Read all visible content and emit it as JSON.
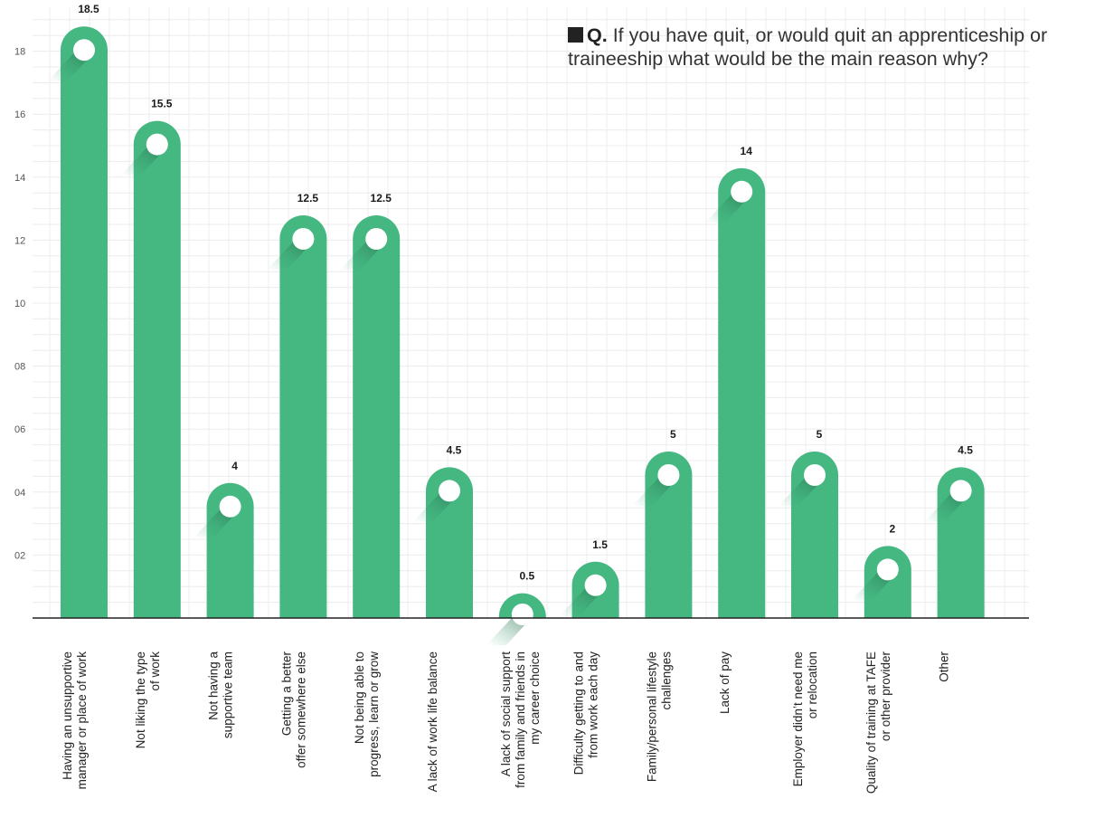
{
  "question": {
    "marker": "Q.",
    "text": "If you have quit, or would quit an apprenticeship or traineeship what would be the main reason why?"
  },
  "chart_data": {
    "type": "bar",
    "title": "",
    "xlabel": "",
    "ylabel": "",
    "ylim": [
      0,
      19
    ],
    "y_ticks": [
      2,
      4,
      6,
      8,
      10,
      12,
      14,
      16,
      18
    ],
    "y_tick_labels": [
      "02",
      "04",
      "06",
      "08",
      "10",
      "12",
      "14",
      "16",
      "18"
    ],
    "grid": true,
    "bar_color": "#45B882",
    "categories": [
      [
        "Having an unsupportive",
        "manager or place of work"
      ],
      [
        "Not liking the type",
        "of work"
      ],
      [
        "Not having a",
        "supportive team"
      ],
      [
        "Getting a better",
        "offer somewhere else"
      ],
      [
        "Not being able to",
        "progress, learn or grow"
      ],
      [
        "A lack of work life balance"
      ],
      [
        "A lack of social support",
        "from family and friends in",
        "my career choice"
      ],
      [
        "Difficulty getting to and",
        "from work each day"
      ],
      [
        "Family/personal lifestyle",
        "challenges"
      ],
      [
        "Lack of pay"
      ],
      [
        "Employer didn’t need me",
        "or relocation"
      ],
      [
        "Quality of training at TAFE",
        "or other provider"
      ],
      [
        "Other"
      ]
    ],
    "values": [
      18.5,
      15.5,
      4,
      12.5,
      12.5,
      4.5,
      0.5,
      1.5,
      5,
      14,
      5,
      2,
      4.5
    ],
    "value_labels": [
      "18.5",
      "15.5",
      "4",
      "12.5",
      "12.5",
      "4.5",
      "0.5",
      "1.5",
      "5",
      "14",
      "5",
      "2",
      "4.5"
    ]
  }
}
